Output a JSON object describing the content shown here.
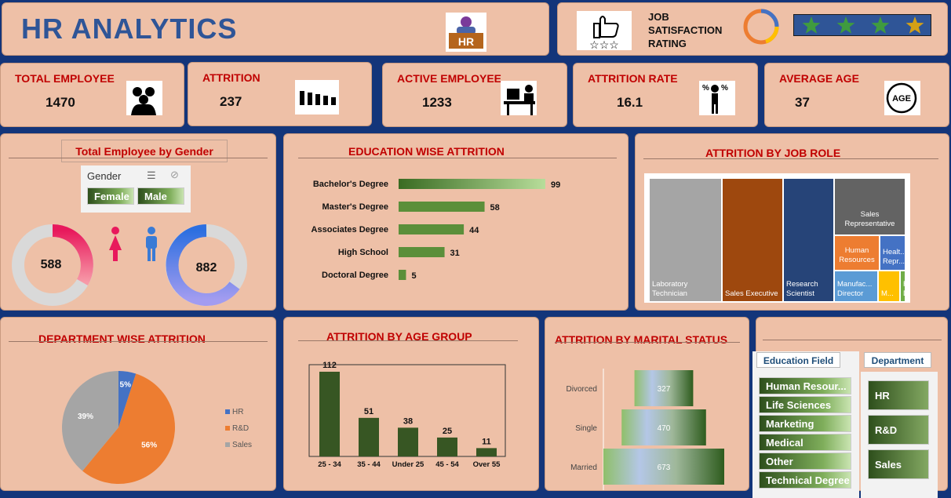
{
  "header": {
    "title": "HR ANALYTICS",
    "hr_badge": "HR",
    "satisfaction_label": [
      "JOB",
      "SATISFACTION",
      "RATING"
    ],
    "stars_count": 4
  },
  "kpis": [
    {
      "label": "TOTAL EMPLOYEE",
      "value": "1470",
      "icon": "people-group-icon"
    },
    {
      "label": "ATTRITION",
      "value": "237",
      "icon": "people-leaving-icon"
    },
    {
      "label": "ACTIVE EMPLOYEE",
      "value": "1233",
      "icon": "worker-at-desk-icon"
    },
    {
      "label": "ATTRITION RATE",
      "value": "16.1",
      "icon": "percent-person-icon"
    },
    {
      "label": "AVERAGE AGE",
      "value": "37",
      "icon": "age-icon"
    }
  ],
  "gender": {
    "title": "Total Employee by Gender",
    "slicer_title": "Gender",
    "options": [
      "Female",
      "Male"
    ],
    "female_value": "588",
    "male_value": "882"
  },
  "education_chart_title": "EDUCATION WISE ATTRITION",
  "jobrole_chart_title": "ATTRITION BY JOB ROLE",
  "department_chart_title": "DEPARTMENT WISE ATTRITION",
  "age_chart_title": "ATTRITION BY AGE GROUP",
  "marital_chart_title": "ATTRITION BY MARITAL STATUS",
  "slicers": {
    "education_field_title": "Education Field",
    "education_fields": [
      "Human Resour...",
      "Life Sciences",
      "Marketing",
      "Medical",
      "Other",
      "Technical Degree"
    ],
    "department_title": "Department",
    "departments": [
      "HR",
      "R&D",
      "Sales"
    ]
  },
  "chart_data": [
    {
      "type": "bar",
      "orientation": "horizontal",
      "title": "EDUCATION WISE ATTRITION",
      "categories": [
        "Bachelor's Degree",
        "Master's Degree",
        "Associates Degree",
        "High School",
        "Doctoral Degree"
      ],
      "values": [
        99,
        58,
        44,
        31,
        5
      ],
      "colors": {
        "bar": "#5b8f3a"
      }
    },
    {
      "type": "treemap",
      "title": "ATTRITION BY JOB ROLE",
      "labels": [
        "Laboratory Technician",
        "Sales Executive",
        "Research Scientist",
        "Sales Representative",
        "Human Resources",
        "Healt... Repr...",
        "Manufac... Director",
        "M...",
        "R... D..."
      ],
      "colors": [
        "#a5a5a5",
        "#9e480e",
        "#264478",
        "#636363",
        "#ed7d31",
        "#4472c4",
        "#5b9bd5",
        "#ffc000",
        "#70ad47"
      ]
    },
    {
      "type": "pie",
      "title": "DEPARTMENT WISE ATTRITION",
      "categories": [
        "HR",
        "R&D",
        "Sales"
      ],
      "values": [
        5,
        56,
        39
      ],
      "data_labels": [
        "5%",
        "56%",
        "39%"
      ],
      "colors": [
        "#4472c4",
        "#ed7d31",
        "#a5a5a5"
      ],
      "legend": "right"
    },
    {
      "type": "bar",
      "title": "ATTRITION BY AGE GROUP",
      "categories": [
        "25 - 34",
        "35 - 44",
        "Under 25",
        "45 - 54",
        "Over 55"
      ],
      "values": [
        112,
        51,
        38,
        25,
        11
      ],
      "colors": {
        "bar": "#375623"
      }
    },
    {
      "type": "bar",
      "orientation": "horizontal",
      "title": "ATTRITION BY MARITAL STATUS",
      "categories": [
        "Divorced",
        "Single",
        "Married"
      ],
      "values": [
        327,
        470,
        673
      ]
    }
  ]
}
